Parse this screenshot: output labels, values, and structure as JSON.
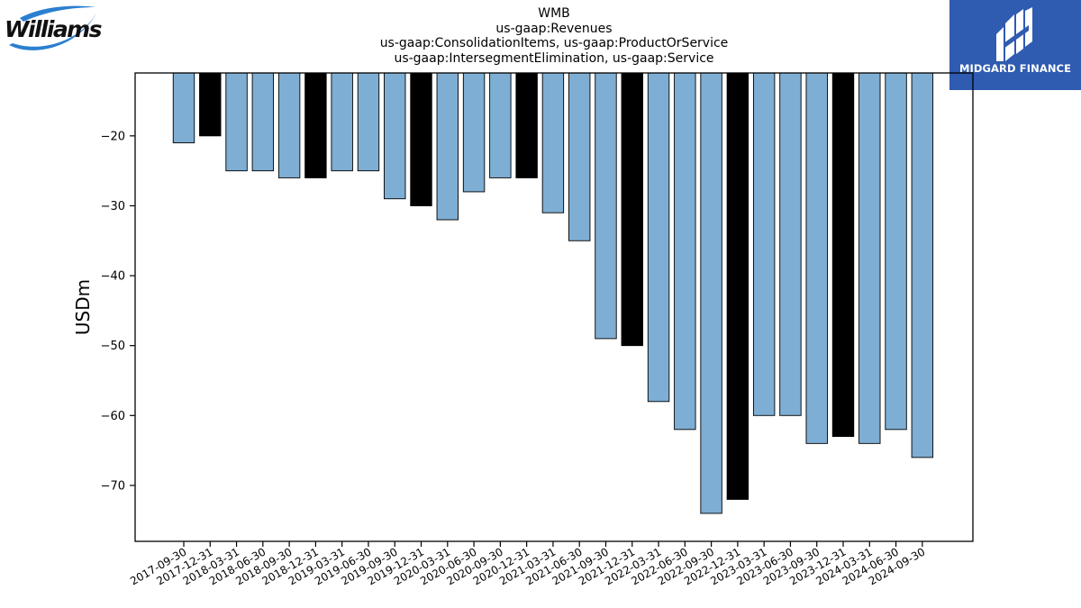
{
  "chart_data": {
    "type": "bar",
    "title_lines": [
      "WMB",
      "us-gaap:Revenues",
      "us-gaap:ConsolidationItems, us-gaap:ProductOrService",
      "us-gaap:IntersegmentElimination, us-gaap:Service"
    ],
    "ylabel": "USDm",
    "xlabel": "",
    "ylim": [
      -78,
      -11
    ],
    "yticks": [
      -20,
      -30,
      -40,
      -50,
      -60,
      -70
    ],
    "categories": [
      "2017-09-30",
      "2017-12-31",
      "2018-03-31",
      "2018-06-30",
      "2018-09-30",
      "2018-12-31",
      "2019-03-31",
      "2019-06-30",
      "2019-09-30",
      "2019-12-31",
      "2020-03-31",
      "2020-06-30",
      "2020-09-30",
      "2020-12-31",
      "2021-03-31",
      "2021-06-30",
      "2021-09-30",
      "2021-12-31",
      "2022-03-31",
      "2022-06-30",
      "2022-09-30",
      "2022-12-31",
      "2023-03-31",
      "2023-06-30",
      "2023-09-30",
      "2023-12-31",
      "2024-03-31",
      "2024-06-30",
      "2024-09-30"
    ],
    "values": [
      -21,
      -20,
      -25,
      -25,
      -26,
      -26,
      -25,
      -25,
      -29,
      -30,
      -32,
      -28,
      -26,
      -26,
      -31,
      -35,
      -49,
      -50,
      -58,
      -62,
      -74,
      -72,
      -60,
      -60,
      -64,
      -63,
      -64,
      -62,
      -66
    ],
    "highlight_indices": [
      1,
      5,
      9,
      13,
      17,
      21,
      25
    ],
    "colors": {
      "bar": "#7eaed4",
      "highlight": "#000000",
      "edge": "#000000"
    },
    "grid": false,
    "legend": "none"
  },
  "logos": {
    "williams": "Williams",
    "midgard": "MIDGARD FINANCE"
  }
}
